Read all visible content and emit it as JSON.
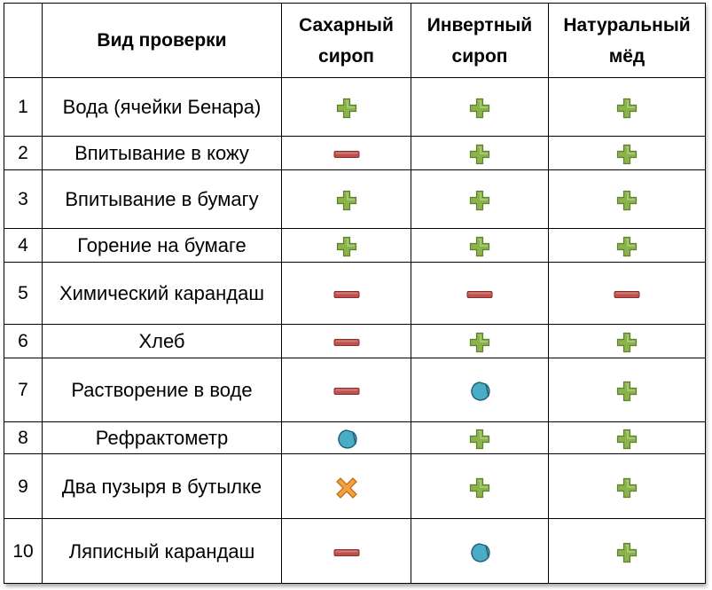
{
  "header": {
    "num": "",
    "check": "Вид проверки",
    "sugar": "Сахарный сироп",
    "invert": "Инвертный сироп",
    "natural": "Натуральный мёд"
  },
  "rows": [
    {
      "num": "1",
      "check": "Вода (ячейки Бенара)",
      "sugar": "plus",
      "invert": "plus",
      "natural": "plus"
    },
    {
      "num": "2",
      "check": "Впитывание в кожу",
      "sugar": "minus",
      "invert": "plus",
      "natural": "plus"
    },
    {
      "num": "3",
      "check": "Впитывание в бумагу",
      "sugar": "plus",
      "invert": "plus",
      "natural": "plus"
    },
    {
      "num": "4",
      "check": "Горение на бумаге",
      "sugar": "plus",
      "invert": "plus",
      "natural": "plus"
    },
    {
      "num": "5",
      "check": "Химический карандаш",
      "sugar": "minus",
      "invert": "minus",
      "natural": "minus"
    },
    {
      "num": "6",
      "check": "Хлеб",
      "sugar": "minus",
      "invert": "plus",
      "natural": "plus"
    },
    {
      "num": "7",
      "check": "Растворение в воде",
      "sugar": "minus",
      "invert": "partial",
      "natural": "plus"
    },
    {
      "num": "8",
      "check": "Рефрактометр",
      "sugar": "partial",
      "invert": "plus",
      "natural": "plus"
    },
    {
      "num": "9",
      "check": "Два пузыря в бутылке",
      "sugar": "cross",
      "invert": "plus",
      "natural": "plus"
    },
    {
      "num": "10",
      "check": "Ляписный карандаш",
      "sugar": "minus",
      "invert": "partial",
      "natural": "plus"
    }
  ],
  "icons": {
    "plus": {
      "name": "plus-icon",
      "color": "#8bb34a",
      "edge": "#5e7f2c"
    },
    "minus": {
      "name": "minus-icon",
      "color": "#c0504d",
      "edge": "#8a2e2b"
    },
    "partial": {
      "name": "partial-circle-icon",
      "color": "#4bacc6",
      "edge": "#1f5f76"
    },
    "cross": {
      "name": "cross-icon",
      "color": "#f5a03a",
      "edge": "#b8681a"
    }
  }
}
